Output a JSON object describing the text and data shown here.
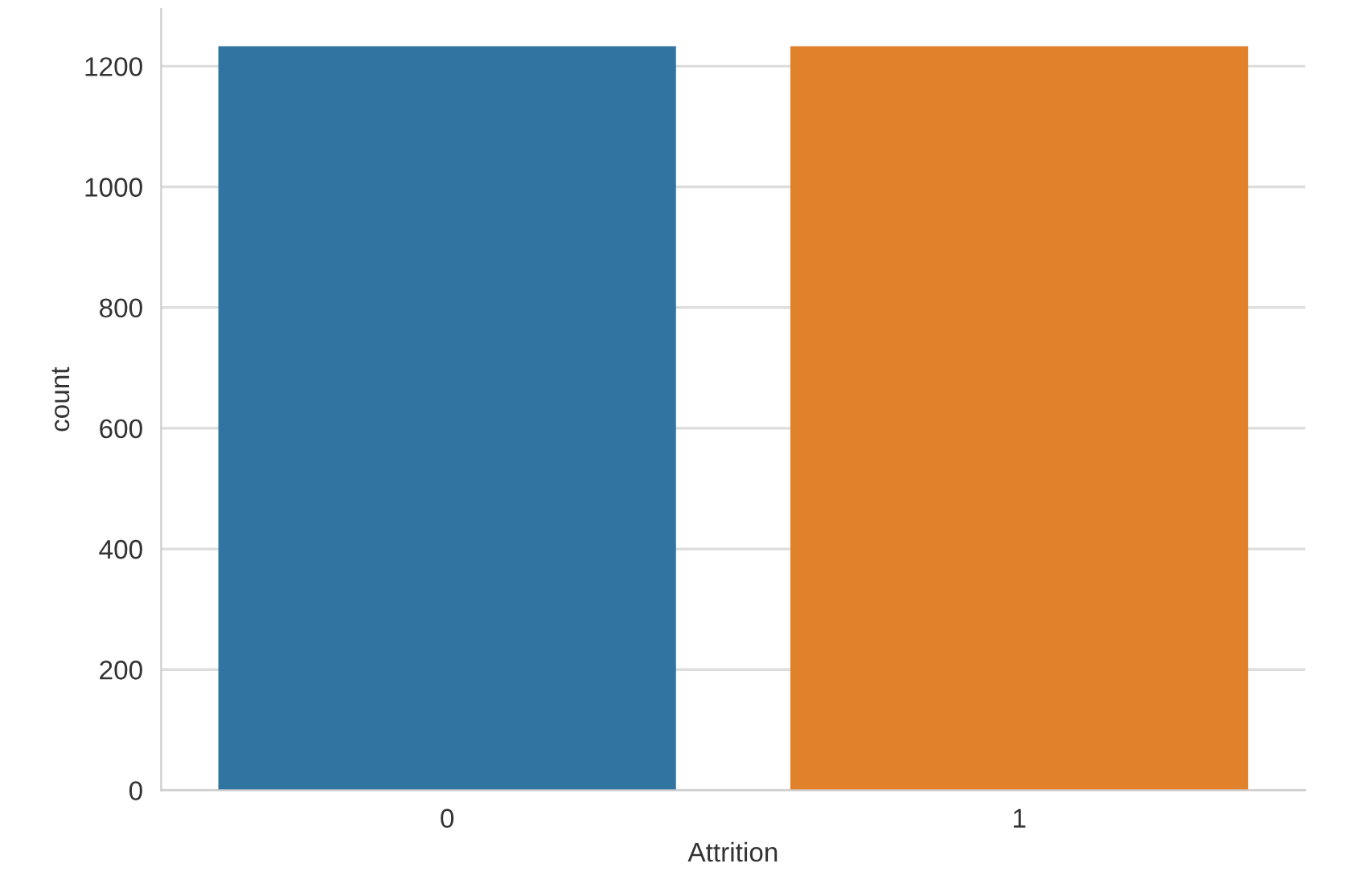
{
  "chart_data": {
    "type": "bar",
    "xlabel": "Attrition",
    "ylabel": "count",
    "categories": [
      "0",
      "1"
    ],
    "values": [
      1233,
      1233
    ],
    "colors": [
      "#3274a1",
      "#e1812c"
    ],
    "ylim": [
      0,
      1295
    ],
    "yticks": [
      0,
      200,
      400,
      600,
      800,
      1000,
      1200
    ],
    "grid": "y"
  }
}
